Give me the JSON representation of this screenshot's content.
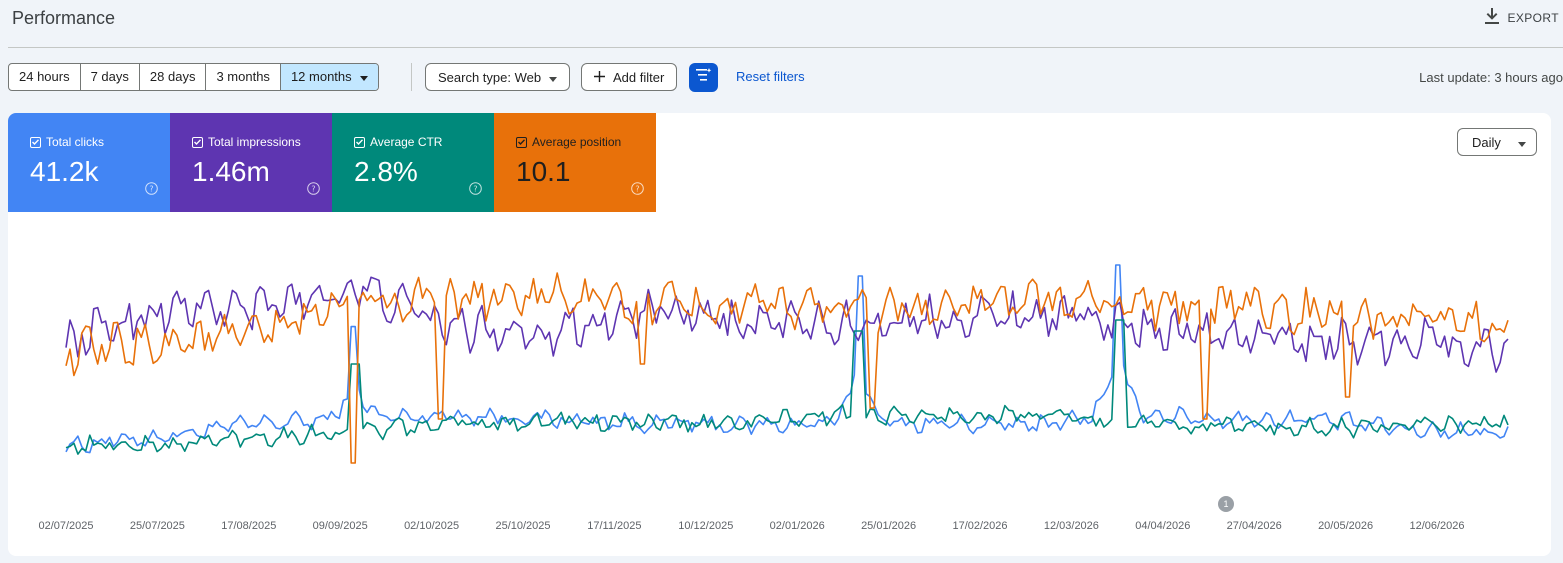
{
  "header": {
    "title": "Performance",
    "export_label": "EXPORT",
    "export_icon": "download-icon"
  },
  "toolbar": {
    "date_ranges": [
      "24 hours",
      "7 days",
      "28 days",
      "3 months",
      "12 months"
    ],
    "selected_range": "12 months",
    "search_type": "Search type: Web",
    "add_filter": "Add filter",
    "reset_filters": "Reset filters",
    "last_update": "Last update: 3 hours ago"
  },
  "metrics": [
    {
      "label": "Total clicks",
      "value": "41.2k",
      "color": "#4285f4",
      "checked": true
    },
    {
      "label": "Total impressions",
      "value": "1.46m",
      "color": "#5e35b1",
      "checked": true
    },
    {
      "label": "Average CTR",
      "value": "2.8%",
      "color": "#00897b",
      "checked": true
    },
    {
      "label": "Average position",
      "value": "10.1",
      "color": "#e8710a",
      "checked": true
    }
  ],
  "interval": "Daily",
  "annotation_badge": "1",
  "chart_data": {
    "type": "line",
    "x_tick_labels": [
      "02/07/2025",
      "25/07/2025",
      "17/08/2025",
      "09/09/2025",
      "02/10/2025",
      "25/10/2025",
      "17/11/2025",
      "10/12/2025",
      "02/01/2026",
      "25/01/2026",
      "17/02/2026",
      "12/03/2026",
      "04/04/2026",
      "27/04/2026",
      "20/05/2026",
      "12/06/2026"
    ],
    "y_axis": "hidden, each series scaled independently",
    "series": [
      {
        "name": "Total clicks",
        "color": "#4285f4",
        "level": [
          0.08,
          0.12,
          0.18,
          0.2,
          0.22,
          0.2,
          0.18,
          0.17,
          0.18,
          0.18,
          0.17,
          0.23,
          0.2,
          0.2,
          0.15,
          0.14
        ],
        "spikes": [
          [
            0.2,
            0.62
          ],
          [
            0.55,
            0.85
          ],
          [
            0.73,
            0.9
          ]
        ]
      },
      {
        "name": "Total impressions",
        "color": "#5e35b1",
        "level": [
          0.55,
          0.7,
          0.7,
          0.8,
          0.62,
          0.6,
          0.68,
          0.64,
          0.62,
          0.66,
          0.68,
          0.64,
          0.58,
          0.56,
          0.56,
          0.52
        ]
      },
      {
        "name": "Average CTR",
        "color": "#00897b",
        "level": [
          0.08,
          0.08,
          0.12,
          0.14,
          0.18,
          0.19,
          0.18,
          0.18,
          0.22,
          0.21,
          0.22,
          0.18,
          0.17,
          0.16,
          0.17,
          0.18
        ]
      },
      {
        "name": "Average position",
        "color": "#e8710a",
        "level": [
          0.5,
          0.55,
          0.58,
          0.74,
          0.74,
          0.76,
          0.72,
          0.7,
          0.72,
          0.7,
          0.74,
          0.72,
          0.72,
          0.68,
          0.64,
          0.62
        ]
      }
    ]
  }
}
